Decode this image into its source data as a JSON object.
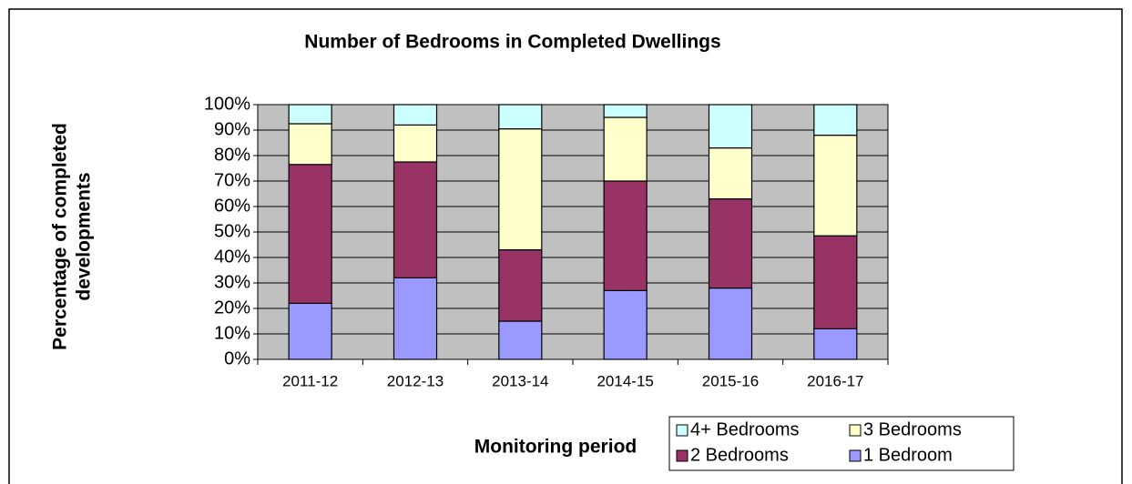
{
  "chart_data": {
    "type": "stacked_bar",
    "title": "Number of Bedrooms in Completed Dwellings",
    "x_label": "Monitoring period",
    "y_label": [
      "Percentage of completed",
      "developments"
    ],
    "categories": [
      "2011-12",
      "2012-13",
      "2013-14",
      "2014-15",
      "2015-16",
      "2016-17"
    ],
    "series": [
      {
        "name": "1 Bedroom",
        "color": "#9999ff",
        "values": [
          22,
          32,
          15,
          27,
          28,
          12
        ]
      },
      {
        "name": "2 Bedrooms",
        "color": "#993366",
        "values": [
          54.5,
          45.5,
          28,
          43,
          35,
          36.5
        ]
      },
      {
        "name": "3 Bedrooms",
        "color": "#ffffcc",
        "values": [
          16,
          14.5,
          47.5,
          25,
          20,
          39.5
        ]
      },
      {
        "name": "4+ Bedrooms",
        "color": "#ccffff",
        "values": [
          7.5,
          8,
          9.5,
          5,
          17,
          12
        ]
      }
    ],
    "ylim": [
      0,
      100
    ],
    "yticks": [
      {
        "value": 0,
        "label": "0%"
      },
      {
        "value": 10,
        "label": "10%"
      },
      {
        "value": 20,
        "label": "20%"
      },
      {
        "value": 30,
        "label": "30%"
      },
      {
        "value": 40,
        "label": "40%"
      },
      {
        "value": 50,
        "label": "50%"
      },
      {
        "value": 60,
        "label": "60%"
      },
      {
        "value": 70,
        "label": "70%"
      },
      {
        "value": 80,
        "label": "80%"
      },
      {
        "value": 90,
        "label": "90%"
      },
      {
        "value": 100,
        "label": "100%"
      }
    ],
    "grid": true,
    "plot_background": "#c0c0c0",
    "legend": "bottom right"
  }
}
